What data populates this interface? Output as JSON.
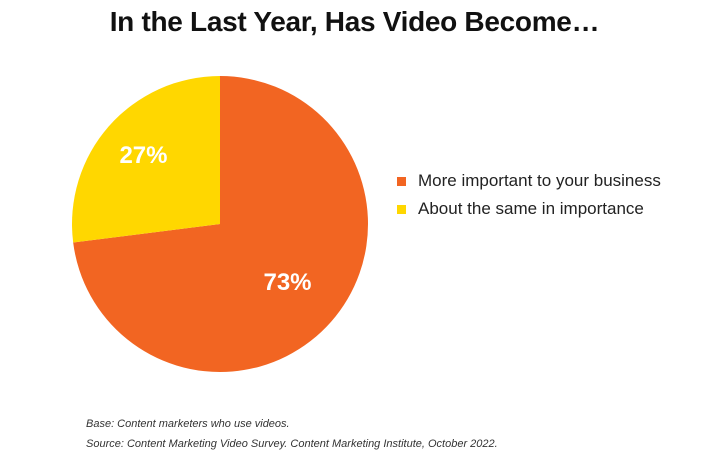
{
  "chart_data": {
    "type": "pie",
    "title": "In the Last Year, Has Video Become…",
    "categories": [
      "More important to your business",
      "About the same in importance"
    ],
    "values": [
      73,
      27
    ],
    "value_labels": [
      "73%",
      "27%"
    ],
    "colors": [
      "#F26522",
      "#FFD700"
    ],
    "legend_position": "right",
    "start_angle_deg": 0,
    "direction": "clockwise"
  },
  "notes": {
    "base": "Base: Content marketers who use videos.",
    "source": "Source: Content Marketing Video Survey. Content Marketing Institute, October 2022."
  }
}
